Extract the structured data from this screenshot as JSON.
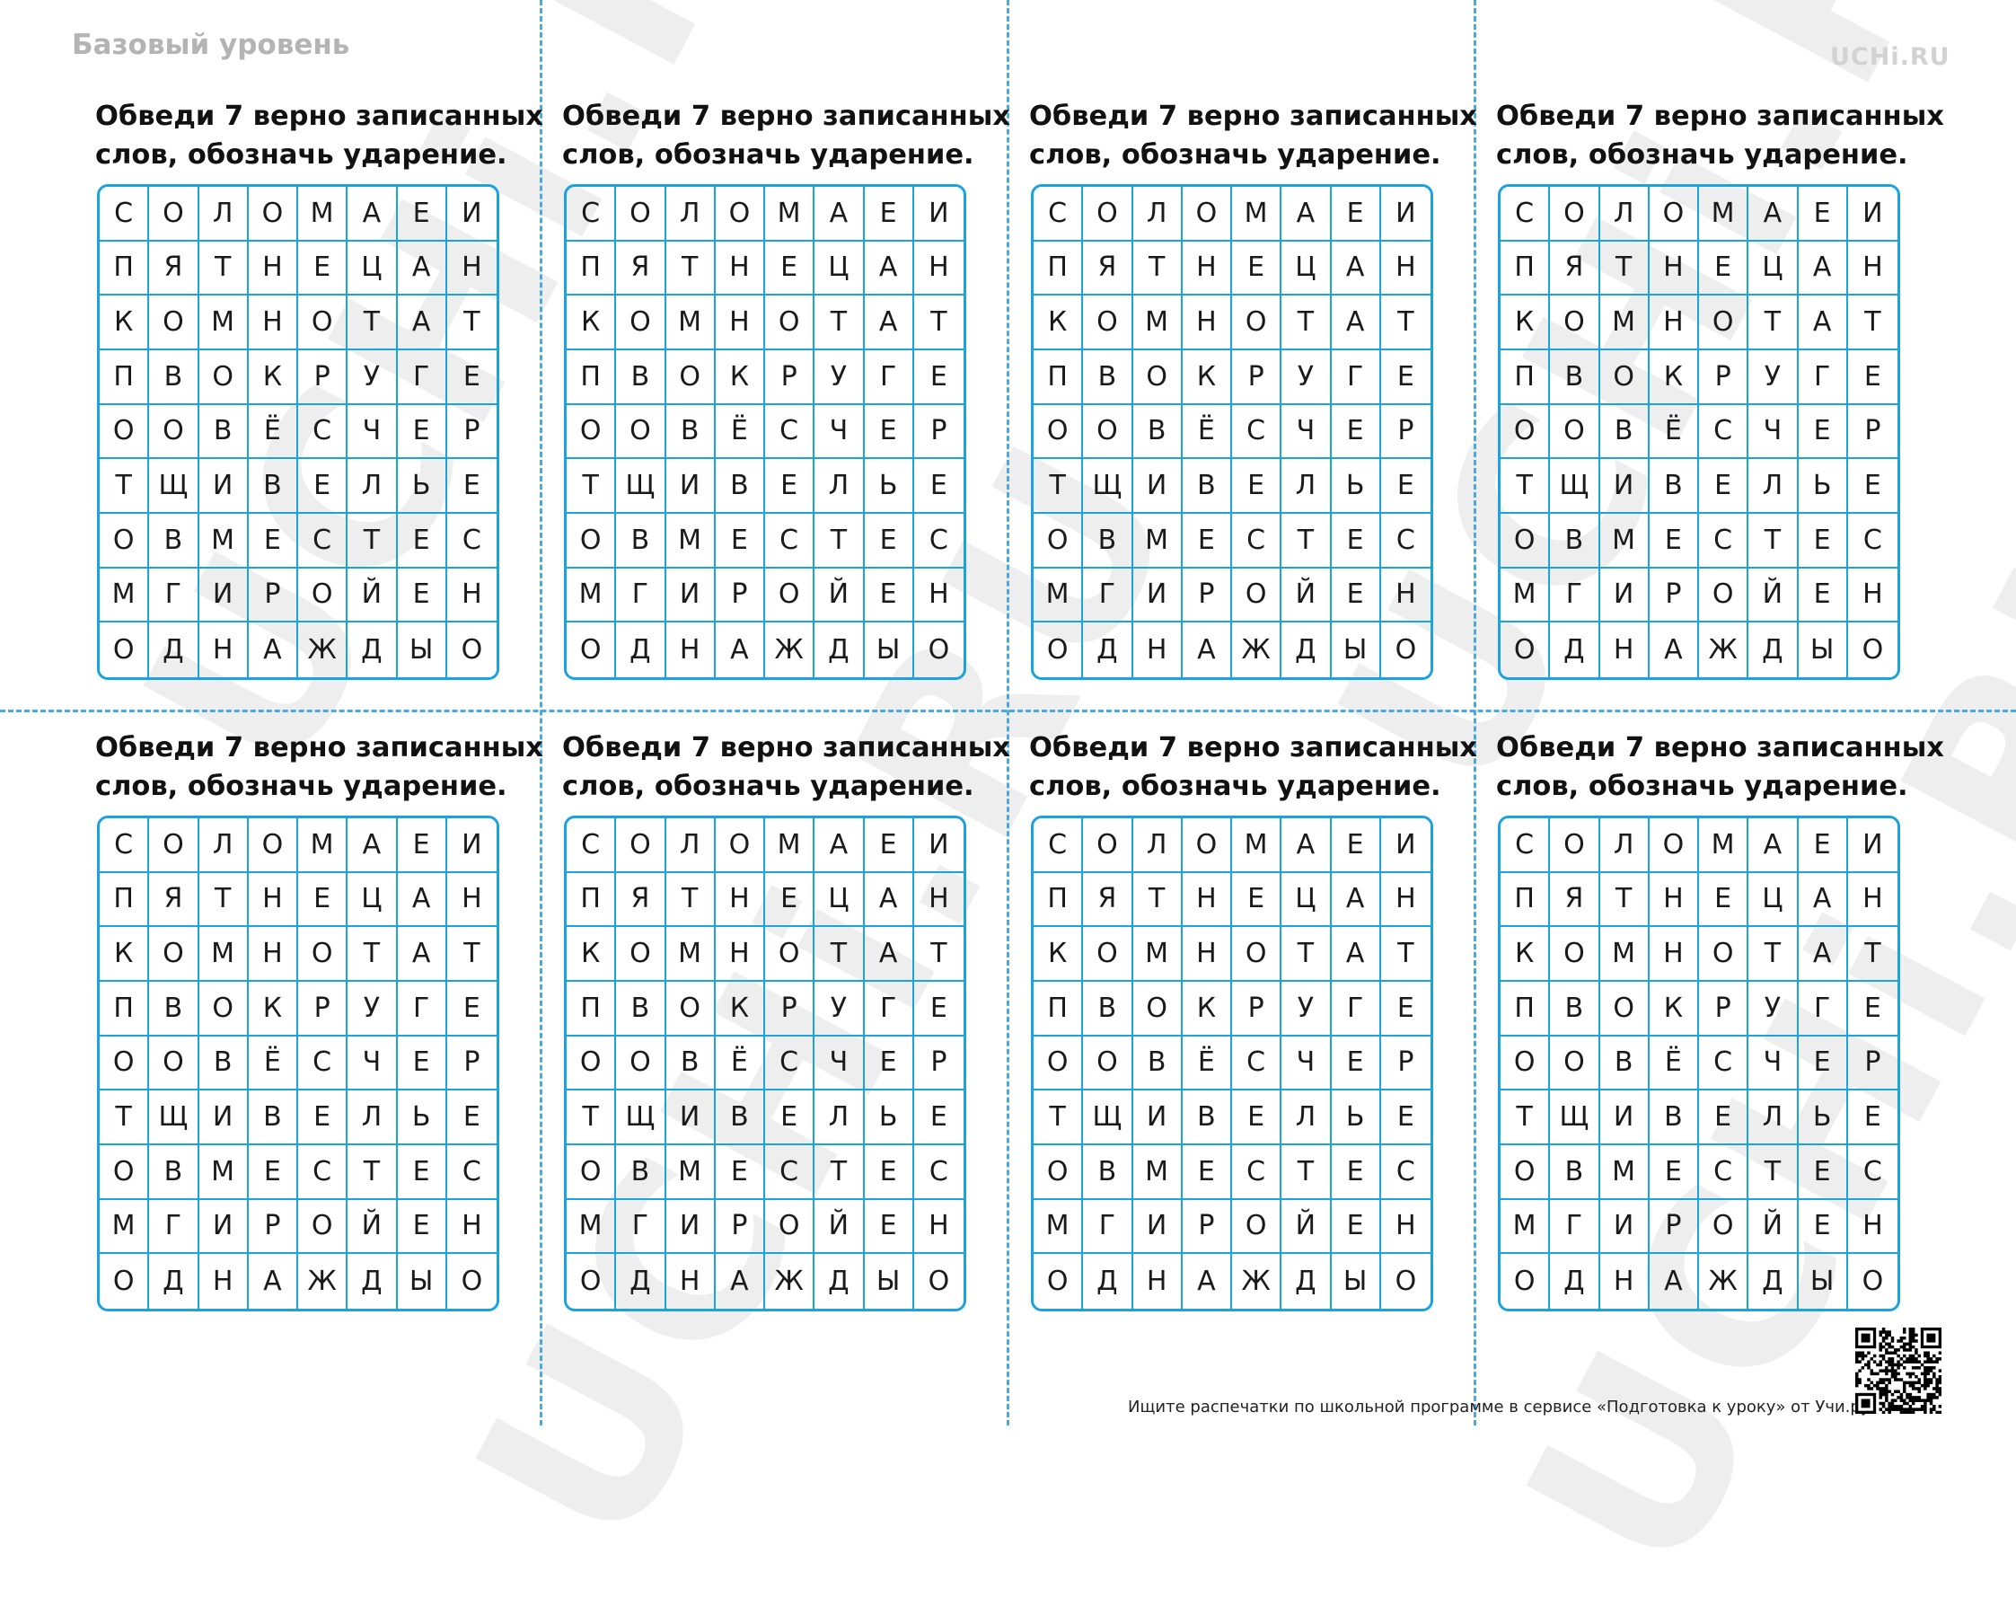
{
  "header": {
    "level_label": "Базовый уровень",
    "brand": "UCHi.RU"
  },
  "card": {
    "instruction_line1": "Обведи 7 верно записанных",
    "instruction_line2": "слов, обозначь ударение.",
    "grid": [
      [
        "С",
        "О",
        "Л",
        "О",
        "М",
        "А",
        "Е",
        "И"
      ],
      [
        "П",
        "Я",
        "Т",
        "Н",
        "Е",
        "Ц",
        "А",
        "Н"
      ],
      [
        "К",
        "О",
        "М",
        "Н",
        "О",
        "Т",
        "А",
        "Т"
      ],
      [
        "П",
        "В",
        "О",
        "К",
        "Р",
        "У",
        "Г",
        "Е"
      ],
      [
        "О",
        "О",
        "В",
        "Ё",
        "С",
        "Ч",
        "Е",
        "Р"
      ],
      [
        "Т",
        "Щ",
        "И",
        "В",
        "Е",
        "Л",
        "Ь",
        "Е"
      ],
      [
        "О",
        "В",
        "М",
        "Е",
        "С",
        "Т",
        "Е",
        "С"
      ],
      [
        "М",
        "Г",
        "И",
        "Р",
        "О",
        "Й",
        "Е",
        "Н"
      ],
      [
        "О",
        "Д",
        "Н",
        "А",
        "Ж",
        "Д",
        "Ы",
        "О"
      ]
    ]
  },
  "watermark": {
    "text": "UCHi.RU",
    "color": "#969696"
  },
  "footer": {
    "text": "Ищите распечатки по школьной программе в сервисе «Подготовка к уроку» от Учи.ру."
  },
  "colors": {
    "grid_border": "#1aa3e0",
    "cut_line": "#4aa9e0",
    "text": "#111111",
    "level_label": "#b4b4b4"
  },
  "icons": {
    "qr": "qr-code-icon"
  }
}
